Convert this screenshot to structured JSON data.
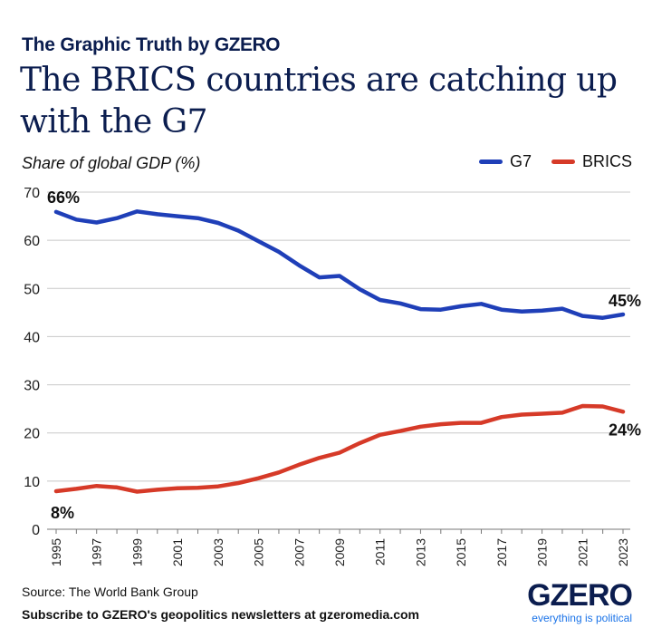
{
  "header": {
    "kicker_prefix": "The Graphic Truth by ",
    "kicker_brand": "GZERO",
    "title": "The BRICS countries are catching up with the G7"
  },
  "footer": {
    "source": "Source: The World Bank Group",
    "subscribe": "Subscribe to GZERO's geopolitics newsletters at gzeromedia.com",
    "logo_word": "GZERO",
    "logo_tagline": "everything is political"
  },
  "chart_data": {
    "type": "line",
    "title": "The BRICS countries are catching up with the G7",
    "ylabel": "Share of global GDP (%)",
    "ylim": [
      0,
      70
    ],
    "yticks": [
      "0",
      "10",
      "20",
      "30",
      "40",
      "50",
      "60",
      "70"
    ],
    "xlabels": [
      "1995",
      "1997",
      "1999",
      "2001",
      "2003",
      "2005",
      "2007",
      "2009",
      "2011",
      "2013",
      "2015",
      "2017",
      "2019",
      "2021",
      "2023"
    ],
    "x": [
      1995,
      1996,
      1997,
      1998,
      1999,
      2000,
      2001,
      2002,
      2003,
      2004,
      2005,
      2006,
      2007,
      2008,
      2009,
      2010,
      2011,
      2012,
      2013,
      2014,
      2015,
      2016,
      2017,
      2018,
      2019,
      2020,
      2021,
      2022,
      2023
    ],
    "grid": true,
    "legend_position": "top-right",
    "series": [
      {
        "name": "G7",
        "color": "#1f3fb8",
        "values": [
          65.9,
          64.3,
          63.7,
          64.6,
          66.0,
          65.4,
          65.0,
          64.6,
          63.6,
          62.0,
          59.8,
          57.6,
          54.8,
          52.3,
          52.6,
          49.8,
          47.6,
          46.9,
          45.7,
          45.6,
          46.3,
          46.8,
          45.6,
          45.2,
          45.4,
          45.8,
          44.3,
          43.9,
          44.6
        ],
        "start_label": "66%",
        "end_label": "45%"
      },
      {
        "name": "BRICS",
        "color": "#d63a28",
        "values": [
          7.9,
          8.4,
          9.0,
          8.7,
          7.8,
          8.2,
          8.5,
          8.6,
          8.9,
          9.6,
          10.6,
          11.8,
          13.4,
          14.8,
          15.9,
          17.9,
          19.6,
          20.4,
          21.3,
          21.8,
          22.1,
          22.1,
          23.3,
          23.8,
          24.0,
          24.2,
          25.6,
          25.5,
          24.4
        ],
        "start_label": "8%",
        "end_label": "24%"
      }
    ]
  }
}
